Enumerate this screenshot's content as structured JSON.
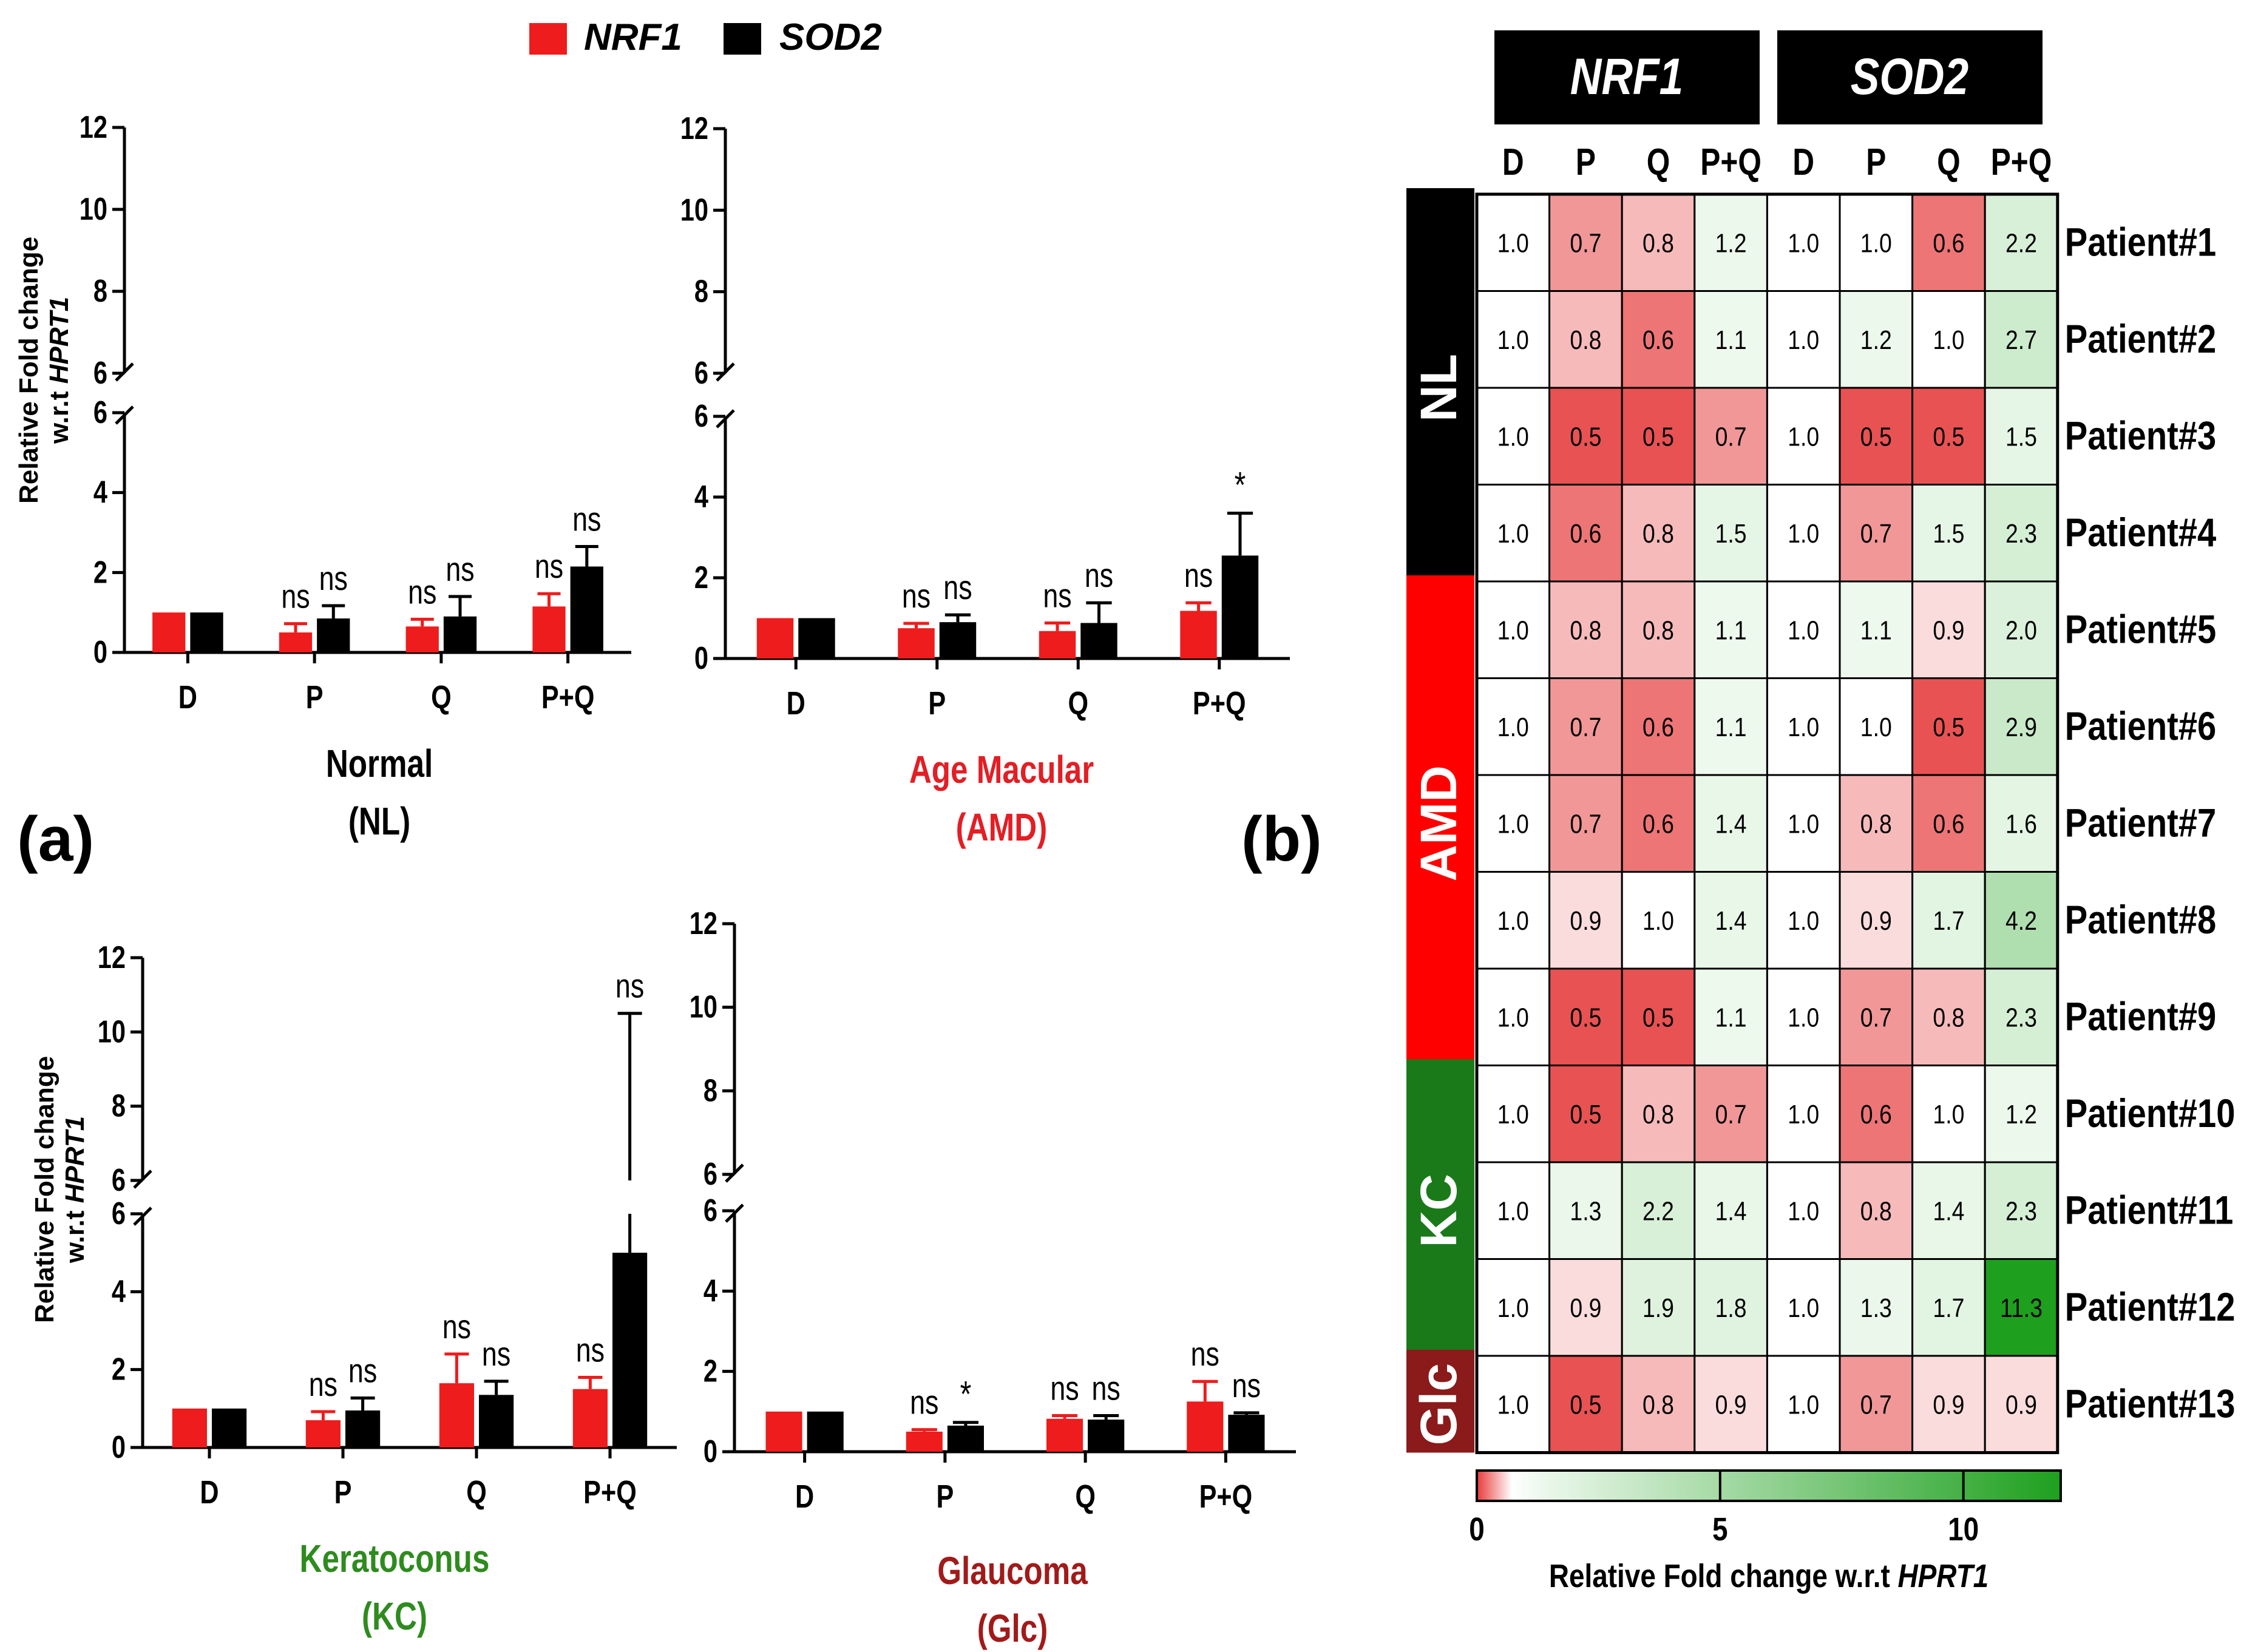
{
  "panel_labels": {
    "a": "(a)",
    "b": "(b)"
  },
  "legend": [
    {
      "name": "NRF1",
      "color": "#ee1c1c"
    },
    {
      "name": "SOD2",
      "color": "#000000"
    }
  ],
  "y_axis_label": {
    "line1": "Relative Fold change",
    "line2_prefix": "w.r.t ",
    "line2_gene": "HPRT1"
  },
  "colors": {
    "nrf1": "#ee1c1c",
    "sod2": "#000000",
    "nl": "#000000",
    "amd": "#ff0000",
    "kc": "#1a7a1a",
    "glc": "#8b1a1a",
    "title_black": "#000000",
    "title_red": "#e31e24",
    "title_green": "#2e8b1e",
    "title_darkred": "#a11a1a"
  },
  "chart_data": [
    {
      "type": "bar",
      "title": "Normal",
      "subtitle": "(NL)",
      "categories": [
        "D",
        "P",
        "Q",
        "P+Q"
      ],
      "series": [
        {
          "name": "NRF1",
          "values": [
            1.0,
            0.5,
            0.65,
            1.15
          ],
          "errors": [
            0.0,
            0.22,
            0.18,
            0.32
          ]
        },
        {
          "name": "SOD2",
          "values": [
            1.0,
            0.85,
            0.9,
            2.15
          ],
          "errors": [
            0.0,
            0.32,
            0.5,
            0.5
          ]
        }
      ],
      "annotations": [
        [
          "",
          "ns",
          "ns",
          "ns"
        ],
        [
          "",
          "ns",
          "ns",
          "ns"
        ]
      ],
      "yticks_lower": [
        "0",
        "2",
        "4",
        "6"
      ],
      "yticks_upper": [
        "6",
        "8",
        "10",
        "12"
      ],
      "ylim": [
        0,
        12
      ],
      "axis_break": 6
    },
    {
      "type": "bar",
      "title": "Age Macular",
      "subtitle": "(AMD)",
      "categories": [
        "D",
        "P",
        "Q",
        "P+Q"
      ],
      "series": [
        {
          "name": "NRF1",
          "values": [
            1.0,
            0.75,
            0.68,
            1.18
          ],
          "errors": [
            0.0,
            0.12,
            0.2,
            0.2
          ]
        },
        {
          "name": "SOD2",
          "values": [
            1.0,
            0.9,
            0.88,
            2.55
          ],
          "errors": [
            0.0,
            0.18,
            0.5,
            1.05
          ]
        }
      ],
      "annotations": [
        [
          "",
          "ns",
          "ns",
          "ns"
        ],
        [
          "",
          "ns",
          "ns",
          "*"
        ]
      ],
      "yticks_lower": [
        "0",
        "2",
        "4",
        "6"
      ],
      "yticks_upper": [
        "6",
        "8",
        "10",
        "12"
      ],
      "ylim": [
        0,
        12
      ],
      "axis_break": 6
    },
    {
      "type": "bar",
      "title": "Keratoconus",
      "subtitle": "(KC)",
      "categories": [
        "D",
        "P",
        "Q",
        "P+Q"
      ],
      "series": [
        {
          "name": "NRF1",
          "values": [
            1.0,
            0.7,
            1.65,
            1.5
          ],
          "errors": [
            0.0,
            0.22,
            0.75,
            0.3
          ]
        },
        {
          "name": "SOD2",
          "values": [
            1.0,
            0.95,
            1.35,
            5.0
          ],
          "errors": [
            0.0,
            0.32,
            0.35,
            5.5
          ]
        }
      ],
      "annotations": [
        [
          "",
          "ns",
          "ns",
          "ns"
        ],
        [
          "",
          "ns",
          "ns",
          "ns"
        ]
      ],
      "yticks_lower": [
        "0",
        "2",
        "4",
        "6"
      ],
      "yticks_upper": [
        "6",
        "8",
        "10",
        "12"
      ],
      "ylim": [
        0,
        12
      ],
      "axis_break": 6
    },
    {
      "type": "bar",
      "title": "Glaucoma",
      "subtitle": "(Glc)",
      "categories": [
        "D",
        "P",
        "Q",
        "P+Q"
      ],
      "series": [
        {
          "name": "NRF1",
          "values": [
            1.0,
            0.5,
            0.82,
            1.25
          ],
          "errors": [
            0.0,
            0.05,
            0.08,
            0.5
          ]
        },
        {
          "name": "SOD2",
          "values": [
            1.0,
            0.65,
            0.8,
            0.92
          ],
          "errors": [
            0.0,
            0.08,
            0.1,
            0.05
          ]
        }
      ],
      "annotations": [
        [
          "",
          "ns",
          "ns",
          "ns"
        ],
        [
          "",
          "*",
          "ns",
          "ns"
        ]
      ],
      "yticks_lower": [
        "0",
        "2",
        "4",
        "6"
      ],
      "yticks_upper": [
        "6",
        "8",
        "10",
        "12"
      ],
      "ylim": [
        0,
        12
      ],
      "axis_break": 6
    },
    {
      "type": "heatmap",
      "group_headers": [
        "NRF1",
        "SOD2"
      ],
      "columns": [
        "D",
        "P",
        "Q",
        "P+Q",
        "D",
        "P",
        "Q",
        "P+Q"
      ],
      "rows": [
        "Patient#1",
        "Patient#2",
        "Patient#3",
        "Patient#4",
        "Patient#5",
        "Patient#6",
        "Patient#7",
        "Patient#8",
        "Patient#9",
        "Patient#10",
        "Patient#11",
        "Patient#12",
        "Patient#13"
      ],
      "cells": [
        [
          "1.0",
          "0.7",
          "0.8",
          "1.2",
          "1.0",
          "1.0",
          "0.6",
          "2.2"
        ],
        [
          "1.0",
          "0.8",
          "0.6",
          "1.1",
          "1.0",
          "1.2",
          "1.0",
          "2.7"
        ],
        [
          "1.0",
          "0.5",
          "0.5",
          "0.7",
          "1.0",
          "0.5",
          "0.5",
          "1.5"
        ],
        [
          "1.0",
          "0.6",
          "0.8",
          "1.5",
          "1.0",
          "0.7",
          "1.5",
          "2.3"
        ],
        [
          "1.0",
          "0.8",
          "0.8",
          "1.1",
          "1.0",
          "1.1",
          "0.9",
          "2.0"
        ],
        [
          "1.0",
          "0.7",
          "0.6",
          "1.1",
          "1.0",
          "1.0",
          "0.5",
          "2.9"
        ],
        [
          "1.0",
          "0.7",
          "0.6",
          "1.4",
          "1.0",
          "0.8",
          "0.6",
          "1.6"
        ],
        [
          "1.0",
          "0.9",
          "1.0",
          "1.4",
          "1.0",
          "0.9",
          "1.7",
          "4.2"
        ],
        [
          "1.0",
          "0.5",
          "0.5",
          "1.1",
          "1.0",
          "0.7",
          "0.8",
          "2.3"
        ],
        [
          "1.0",
          "0.5",
          "0.8",
          "0.7",
          "1.0",
          "0.6",
          "1.0",
          "1.2"
        ],
        [
          "1.0",
          "1.3",
          "2.2",
          "1.4",
          "1.0",
          "0.8",
          "1.4",
          "2.3"
        ],
        [
          "1.0",
          "0.9",
          "1.9",
          "1.8",
          "1.0",
          "1.3",
          "1.7",
          "11.3"
        ],
        [
          "1.0",
          "0.5",
          "0.8",
          "0.9",
          "1.0",
          "0.7",
          "0.9",
          "0.9"
        ]
      ],
      "groups": [
        {
          "label": "NL",
          "start": 0,
          "count": 4
        },
        {
          "label": "AMD",
          "start": 4,
          "count": 5
        },
        {
          "label": "KC",
          "start": 9,
          "count": 3
        },
        {
          "label": "Glc",
          "start": 12,
          "count": 1
        }
      ],
      "colorbar": {
        "ticks": [
          "0",
          "5",
          "10"
        ],
        "range": [
          0,
          12
        ],
        "label_prefix": "Relative Fold change w.r.t ",
        "label_gene": "HPRT1"
      }
    }
  ]
}
